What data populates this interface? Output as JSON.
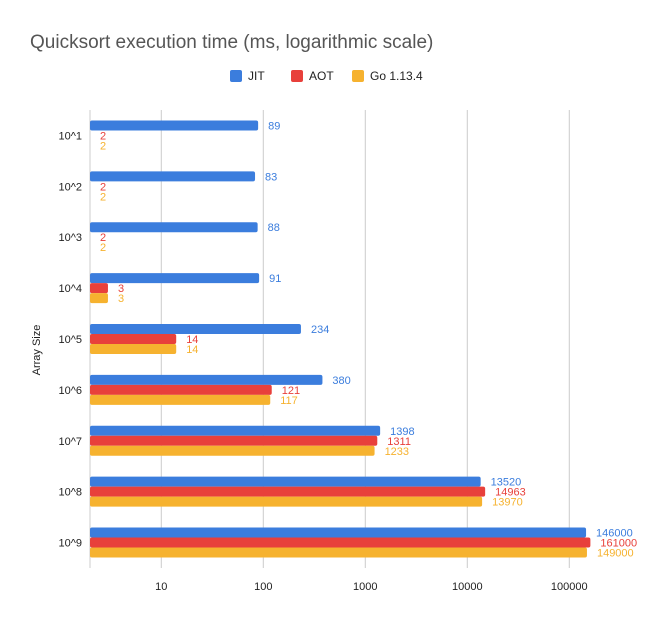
{
  "chart_data": {
    "type": "bar",
    "orientation": "horizontal",
    "title": "Quicksort execution time (ms, logarithmic scale)",
    "ylabel": "Array Size",
    "xlabel": "",
    "x_scale": "log",
    "xlim": [
      2,
      200000
    ],
    "x_ticks": [
      10,
      100,
      1000,
      10000,
      100000
    ],
    "grid": true,
    "legend": "top",
    "categories": [
      "10^1",
      "10^2",
      "10^3",
      "10^4",
      "10^5",
      "10^6",
      "10^7",
      "10^8",
      "10^9"
    ],
    "series": [
      {
        "name": "JIT",
        "color": "#3b7ddd",
        "values": [
          89,
          83,
          88,
          91,
          234,
          380,
          1398,
          13520,
          146000
        ]
      },
      {
        "name": "AOT",
        "color": "#e8403b",
        "values": [
          2,
          2,
          2,
          3,
          14,
          121,
          1311,
          14963,
          161000
        ]
      },
      {
        "name": "Go 1.13.4",
        "color": "#f6b22f",
        "values": [
          2,
          2,
          2,
          3,
          14,
          117,
          1233,
          13970,
          149000
        ]
      }
    ]
  }
}
